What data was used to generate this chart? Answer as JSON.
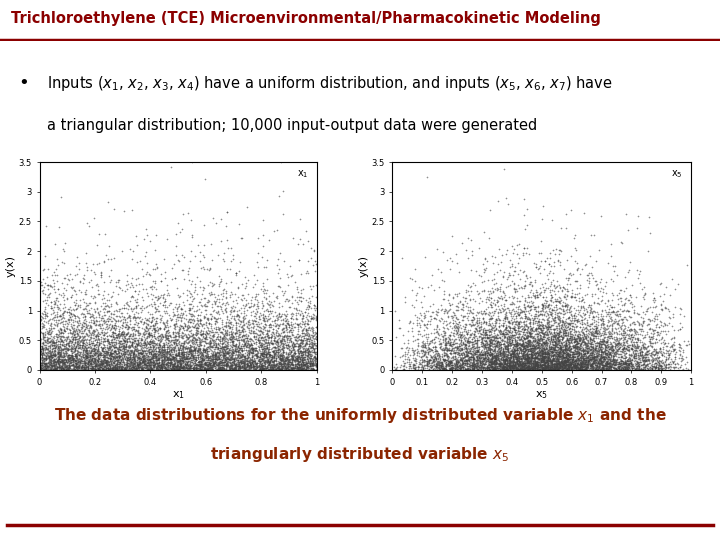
{
  "title": "Trichloroethylene (TCE) Microenvironmental/Pharmacokinetic Modeling",
  "title_color": "#8B0000",
  "title_bg_color": "#E0E0E0",
  "caption_color": "#8B2500",
  "bottom_line_color": "#8B0000",
  "scatter_color": "#444444",
  "plot1_xlabel": "x$_1$",
  "plot1_ylabel": "y(x)",
  "plot1_corner_label": "x$_1$",
  "plot1_xlim": [
    0,
    1
  ],
  "plot1_ylim": [
    0,
    3.5
  ],
  "plot1_yticks": [
    0,
    0.5,
    1,
    1.5,
    2,
    2.5,
    3,
    3.5
  ],
  "plot1_xticks": [
    0,
    0.2,
    0.4,
    0.6,
    0.8,
    1
  ],
  "plot2_xlabel": "x$_5$",
  "plot2_ylabel": "y(x)",
  "plot2_corner_label": "x$_5$",
  "plot2_xlim": [
    0,
    1
  ],
  "plot2_ylim": [
    0,
    3.5
  ],
  "plot2_yticks": [
    0,
    0.5,
    1,
    1.5,
    2,
    2.5,
    3,
    3.5
  ],
  "plot2_xticks": [
    0,
    0.1,
    0.2,
    0.3,
    0.4,
    0.5,
    0.6,
    0.7,
    0.8,
    0.9,
    1
  ],
  "n_points": 10000,
  "bg_color": "#FFFFFF",
  "font_family": "DejaVu Sans"
}
